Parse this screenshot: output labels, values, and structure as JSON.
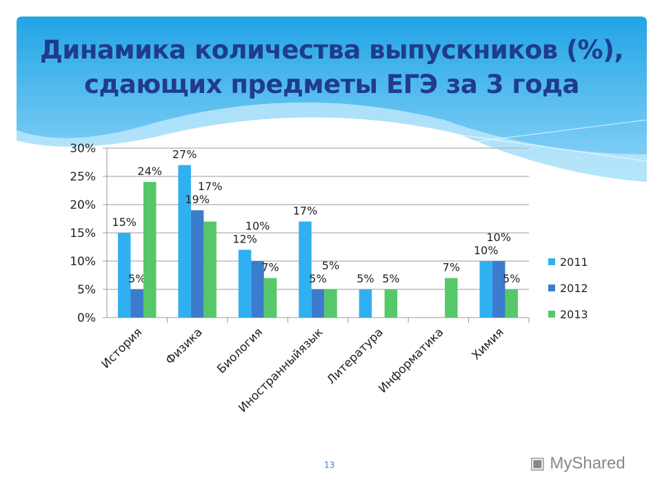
{
  "title_lines": [
    "Динамика количества выпускников (%),",
    "сдающих предметы ЕГЭ за 3 года"
  ],
  "page_number": "13",
  "watermark": "MyShared",
  "chart_data": {
    "type": "bar",
    "categories": [
      "История",
      "Физика",
      "Биология",
      "Иностранныйязык",
      "Литература",
      "Информатика",
      "Химия"
    ],
    "series": [
      {
        "name": "2011",
        "color": "#30b0f0",
        "values": [
          15,
          27,
          12,
          17,
          5,
          null,
          10
        ]
      },
      {
        "name": "2012",
        "color": "#3c7ccc",
        "values": [
          5,
          19,
          10,
          5,
          null,
          null,
          10
        ]
      },
      {
        "name": "2013",
        "color": "#55c86a",
        "values": [
          24,
          17,
          7,
          5,
          5,
          7,
          5
        ]
      }
    ],
    "yticks": [
      "0%",
      "5%",
      "10%",
      "15%",
      "20%",
      "25%",
      "30%"
    ],
    "ylim": [
      0,
      30
    ],
    "grid": true,
    "legend": "right"
  }
}
